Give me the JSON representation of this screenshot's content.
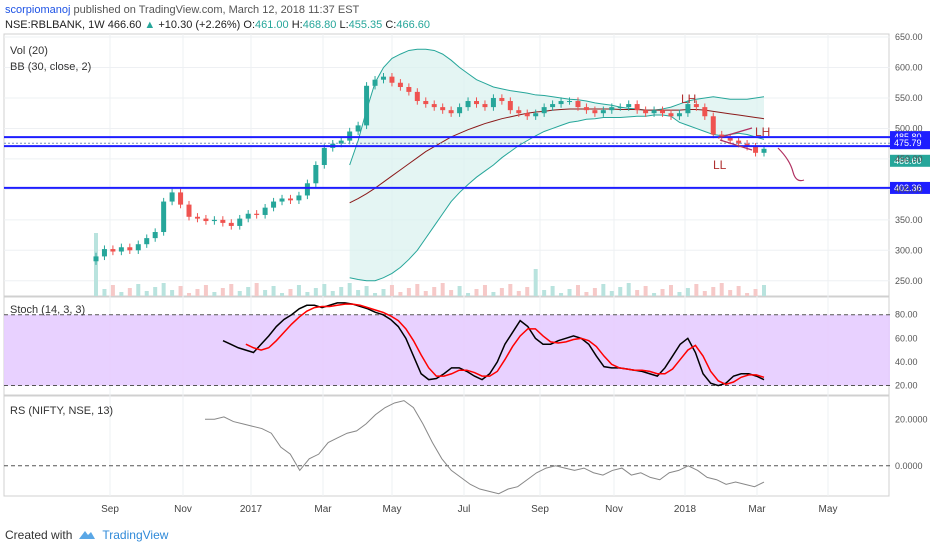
{
  "header": {
    "user": "scorpiomanoj",
    "published": "published on TradingView.com, March 12, 2018 11:37 EST",
    "symbol": "NSE:RBLBANK, 1W",
    "last": "466.60",
    "change": "+10.30 (+2.26%)",
    "o_label": "O:",
    "o": "461.00",
    "h_label": "H:",
    "h": "468.80",
    "l_label": "L:",
    "l": "455.35",
    "c_label": "C:",
    "c": "466.60"
  },
  "panes": {
    "main_labels": [
      "Vol (20)",
      "BB (30, close, 2)"
    ],
    "stoch_label": "Stoch (14, 3, 3)",
    "rs_label": "RS (NIFTY, NSE, 13)"
  },
  "annotations": [
    "LH",
    "LH",
    "LL"
  ],
  "footer": {
    "created": "Created with",
    "brand": "TradingView"
  },
  "colors": {
    "up": "#26a69a",
    "down": "#ef5350",
    "hline": "#1e1eff",
    "bb_band": "#26a69a",
    "bb_basis": "#8b1a1a",
    "stoch_k": "#000000",
    "stoch_d": "#ff0000",
    "stoch_zone": "#e6ccff",
    "rs": "#888888",
    "label_blue": "#1e1eff",
    "label_green": "#26a69a"
  },
  "chart_data": [
    {
      "type": "candlestick",
      "name": "NSE:RBLBANK, 1W",
      "price_axis_ticks": [
        250,
        300,
        350,
        400,
        450,
        500,
        550,
        600,
        650
      ],
      "ylim": [
        225,
        655
      ],
      "x_ticks": [
        "Sep",
        "Nov",
        "2017",
        "Mar",
        "May",
        "Jul",
        "Sep",
        "Nov",
        "2018",
        "Mar",
        "May"
      ],
      "horizontal_levels": [
        485.8,
        475.79,
        402.36
      ],
      "price_labels": [
        "485.80",
        "475.79",
        "466.60",
        "402.36"
      ],
      "close_series": [
        290,
        302,
        298,
        305,
        300,
        310,
        320,
        330,
        380,
        395,
        375,
        355,
        352,
        348,
        350,
        345,
        340,
        352,
        360,
        358,
        370,
        380,
        385,
        382,
        390,
        410,
        440,
        468,
        475,
        480,
        495,
        505,
        570,
        580,
        585,
        575,
        568,
        560,
        545,
        540,
        535,
        530,
        525,
        535,
        545,
        540,
        535,
        550,
        545,
        530,
        525,
        520,
        525,
        535,
        540,
        545,
        545,
        535,
        530,
        525,
        530,
        535,
        535,
        540,
        530,
        525,
        530,
        525,
        520,
        525,
        540,
        535,
        520,
        490,
        485,
        480,
        475,
        470,
        460,
        466.6
      ],
      "bb_upper": [
        null,
        null,
        null,
        null,
        null,
        null,
        null,
        null,
        null,
        null,
        null,
        null,
        null,
        null,
        null,
        null,
        null,
        null,
        null,
        null,
        null,
        null,
        null,
        null,
        null,
        null,
        null,
        null,
        null,
        null,
        440,
        480,
        530,
        575,
        600,
        615,
        622,
        628,
        630,
        630,
        628,
        622,
        612,
        600,
        590,
        580,
        574,
        568,
        565,
        562,
        560,
        558,
        555,
        554,
        552,
        550,
        548,
        547,
        545,
        542,
        540,
        538,
        535,
        533,
        532,
        530,
        530,
        532,
        535,
        540,
        545,
        548,
        550,
        552,
        550,
        548,
        548,
        548,
        550,
        552
      ],
      "bb_basis": [
        null,
        null,
        null,
        null,
        null,
        null,
        null,
        null,
        null,
        null,
        null,
        null,
        null,
        null,
        null,
        null,
        null,
        null,
        null,
        null,
        null,
        null,
        null,
        null,
        null,
        null,
        null,
        null,
        null,
        null,
        378,
        385,
        393,
        402,
        412,
        422,
        432,
        442,
        452,
        462,
        470,
        478,
        486,
        492,
        498,
        503,
        508,
        512,
        516,
        519,
        522,
        525,
        527,
        528,
        530,
        531,
        532,
        532,
        532,
        532,
        532,
        532,
        531,
        531,
        531,
        530,
        530,
        530,
        530,
        530,
        531,
        531,
        530,
        528,
        526,
        524,
        522,
        520,
        518,
        516
      ],
      "bb_lower": [
        null,
        null,
        null,
        null,
        null,
        null,
        null,
        null,
        null,
        null,
        null,
        null,
        null,
        null,
        null,
        null,
        null,
        null,
        null,
        null,
        null,
        null,
        null,
        null,
        null,
        null,
        null,
        null,
        null,
        null,
        255,
        252,
        250,
        250,
        255,
        262,
        272,
        285,
        300,
        320,
        340,
        360,
        380,
        395,
        408,
        420,
        430,
        440,
        452,
        462,
        472,
        480,
        488,
        495,
        500,
        505,
        510,
        512,
        515,
        516,
        518,
        518,
        518,
        519,
        520,
        520,
        522,
        522,
        520,
        510,
        505,
        500,
        495,
        490,
        488,
        490,
        492,
        490,
        486,
        482
      ]
    },
    {
      "type": "line",
      "name": "Stoch (14, 3, 3)",
      "ylim": [
        12,
        95
      ],
      "y_ticks": [
        20,
        40,
        60,
        80
      ],
      "series": [
        {
          "name": "K",
          "values": [
            58,
            55,
            52,
            50,
            48,
            55,
            62,
            70,
            76,
            80,
            85,
            88,
            88,
            86,
            88,
            90,
            90,
            89,
            87,
            85,
            82,
            80,
            76,
            70,
            60,
            45,
            30,
            25,
            26,
            30,
            35,
            35,
            32,
            28,
            25,
            30,
            40,
            55,
            65,
            75,
            70,
            60,
            55,
            55,
            58,
            60,
            62,
            60,
            55,
            45,
            36,
            35,
            35,
            34,
            33,
            32,
            30,
            28,
            35,
            45,
            55,
            60,
            48,
            30,
            22,
            20,
            22,
            28,
            30,
            30,
            28,
            25
          ]
        },
        {
          "name": "D",
          "values": [
            null,
            null,
            null,
            55,
            52,
            50,
            52,
            58,
            65,
            72,
            78,
            83,
            86,
            87,
            87,
            88,
            89,
            89,
            88,
            86,
            84,
            82,
            79,
            75,
            68,
            58,
            46,
            35,
            28,
            28,
            30,
            33,
            33,
            31,
            28,
            28,
            32,
            42,
            53,
            62,
            68,
            68,
            62,
            57,
            56,
            57,
            59,
            60,
            58,
            53,
            45,
            38,
            35,
            34,
            33,
            33,
            32,
            30,
            30,
            34,
            42,
            50,
            54,
            45,
            32,
            24,
            21,
            23,
            27,
            29,
            29,
            27
          ]
        }
      ]
    },
    {
      "type": "line",
      "name": "RS (NIFTY, NSE, 13)",
      "y_ticks": [
        "20.0000",
        "0.0000"
      ],
      "ylim": [
        -13,
        30
      ],
      "series": [
        {
          "name": "RS",
          "values": [
            20,
            20,
            21,
            19,
            18,
            17,
            16,
            14,
            8,
            5,
            -2,
            3,
            5,
            10,
            12,
            14,
            15,
            18,
            22,
            25,
            27,
            28,
            25,
            18,
            10,
            3,
            -2,
            -5,
            -8,
            -10,
            -11,
            -12,
            -10,
            -9,
            -6,
            -3,
            -1,
            0,
            -1,
            -2,
            -1,
            -3,
            -4,
            -2,
            -1,
            -4,
            -3,
            -5,
            -6,
            -3,
            -2,
            0,
            -2,
            -5,
            -6,
            -8,
            -7,
            -8,
            -9,
            -7
          ]
        }
      ]
    }
  ]
}
